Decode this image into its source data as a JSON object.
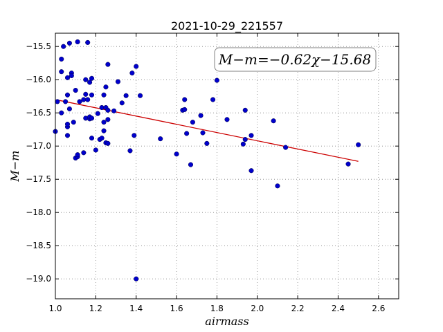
{
  "chart_data": {
    "type": "scatter",
    "title": "2021-10-29_221557",
    "xlabel": "airmass",
    "ylabel": "M−m",
    "xlim": [
      1.0,
      2.7
    ],
    "ylim": [
      -19.3,
      -15.3
    ],
    "x_ticks": [
      1.0,
      1.2,
      1.4,
      1.6,
      1.8,
      2.0,
      2.2,
      2.4,
      2.6
    ],
    "x_tick_labels": [
      "1.0",
      "1.2",
      "1.4",
      "1.6",
      "1.8",
      "2.0",
      "2.2",
      "2.4",
      "2.6"
    ],
    "y_ticks": [
      -15.5,
      -16.0,
      -16.5,
      -17.0,
      -17.5,
      -18.0,
      -18.5,
      -19.0
    ],
    "y_tick_labels": [
      "−15.5",
      "−16.0",
      "−16.5",
      "−17.0",
      "−17.5",
      "−18.0",
      "−18.5",
      "−19.0"
    ],
    "grid": true,
    "annotation": "M−m=−0.62χ−15.68",
    "annotation_placement": "top-right",
    "colors": {
      "points": "#0000cc",
      "fit": "#cc0000",
      "grid": "#808080"
    },
    "fit": {
      "slope": -0.62,
      "intercept": -15.68,
      "x_range": [
        1.02,
        2.5
      ]
    },
    "points": [
      {
        "x": 1.0,
        "y": -16.78
      },
      {
        "x": 1.01,
        "y": -16.33
      },
      {
        "x": 1.03,
        "y": -15.69
      },
      {
        "x": 1.03,
        "y": -15.88
      },
      {
        "x": 1.03,
        "y": -16.5
      },
      {
        "x": 1.04,
        "y": -15.5
      },
      {
        "x": 1.05,
        "y": -16.33
      },
      {
        "x": 1.06,
        "y": -16.23
      },
      {
        "x": 1.06,
        "y": -16.71
      },
      {
        "x": 1.06,
        "y": -16.84
      },
      {
        "x": 1.06,
        "y": -16.67
      },
      {
        "x": 1.06,
        "y": -15.97
      },
      {
        "x": 1.07,
        "y": -15.45
      },
      {
        "x": 1.07,
        "y": -16.44
      },
      {
        "x": 1.08,
        "y": -15.9
      },
      {
        "x": 1.08,
        "y": -15.94
      },
      {
        "x": 1.09,
        "y": -16.64
      },
      {
        "x": 1.1,
        "y": -17.18
      },
      {
        "x": 1.1,
        "y": -16.16
      },
      {
        "x": 1.11,
        "y": -15.43
      },
      {
        "x": 1.11,
        "y": -17.16
      },
      {
        "x": 1.11,
        "y": -17.13
      },
      {
        "x": 1.12,
        "y": -16.33
      },
      {
        "x": 1.14,
        "y": -16.3
      },
      {
        "x": 1.14,
        "y": -17.1
      },
      {
        "x": 1.15,
        "y": -16.0
      },
      {
        "x": 1.15,
        "y": -16.22
      },
      {
        "x": 1.15,
        "y": -16.58
      },
      {
        "x": 1.16,
        "y": -15.44
      },
      {
        "x": 1.16,
        "y": -16.3
      },
      {
        "x": 1.17,
        "y": -16.04
      },
      {
        "x": 1.17,
        "y": -16.59
      },
      {
        "x": 1.17,
        "y": -16.56
      },
      {
        "x": 1.18,
        "y": -15.98
      },
      {
        "x": 1.18,
        "y": -16.58
      },
      {
        "x": 1.18,
        "y": -16.88
      },
      {
        "x": 1.18,
        "y": -16.23
      },
      {
        "x": 1.2,
        "y": -17.06
      },
      {
        "x": 1.21,
        "y": -16.51
      },
      {
        "x": 1.22,
        "y": -16.9
      },
      {
        "x": 1.23,
        "y": -16.42
      },
      {
        "x": 1.23,
        "y": -16.88
      },
      {
        "x": 1.24,
        "y": -16.64
      },
      {
        "x": 1.24,
        "y": -16.77
      },
      {
        "x": 1.24,
        "y": -16.23
      },
      {
        "x": 1.25,
        "y": -16.11
      },
      {
        "x": 1.25,
        "y": -16.42
      },
      {
        "x": 1.25,
        "y": -16.95
      },
      {
        "x": 1.26,
        "y": -15.77
      },
      {
        "x": 1.26,
        "y": -16.6
      },
      {
        "x": 1.26,
        "y": -16.96
      },
      {
        "x": 1.26,
        "y": -16.46
      },
      {
        "x": 1.29,
        "y": -16.47
      },
      {
        "x": 1.31,
        "y": -16.03
      },
      {
        "x": 1.33,
        "y": -16.35
      },
      {
        "x": 1.35,
        "y": -16.24
      },
      {
        "x": 1.37,
        "y": -17.07
      },
      {
        "x": 1.38,
        "y": -15.9
      },
      {
        "x": 1.39,
        "y": -16.84
      },
      {
        "x": 1.4,
        "y": -15.8
      },
      {
        "x": 1.4,
        "y": -19.0
      },
      {
        "x": 1.42,
        "y": -16.24
      },
      {
        "x": 1.52,
        "y": -16.89
      },
      {
        "x": 1.6,
        "y": -17.12
      },
      {
        "x": 1.63,
        "y": -16.46
      },
      {
        "x": 1.64,
        "y": -16.3
      },
      {
        "x": 1.64,
        "y": -16.45
      },
      {
        "x": 1.65,
        "y": -16.81
      },
      {
        "x": 1.67,
        "y": -17.28
      },
      {
        "x": 1.68,
        "y": -16.64
      },
      {
        "x": 1.72,
        "y": -16.54
      },
      {
        "x": 1.73,
        "y": -16.8
      },
      {
        "x": 1.75,
        "y": -16.96
      },
      {
        "x": 1.78,
        "y": -16.3
      },
      {
        "x": 1.8,
        "y": -16.01
      },
      {
        "x": 1.85,
        "y": -16.6
      },
      {
        "x": 1.93,
        "y": -16.97
      },
      {
        "x": 1.94,
        "y": -16.46
      },
      {
        "x": 1.94,
        "y": -16.9
      },
      {
        "x": 1.97,
        "y": -16.84
      },
      {
        "x": 1.97,
        "y": -17.37
      },
      {
        "x": 2.08,
        "y": -16.62
      },
      {
        "x": 2.1,
        "y": -17.6
      },
      {
        "x": 2.14,
        "y": -17.02
      },
      {
        "x": 2.45,
        "y": -17.27
      },
      {
        "x": 2.5,
        "y": -16.98
      }
    ]
  }
}
